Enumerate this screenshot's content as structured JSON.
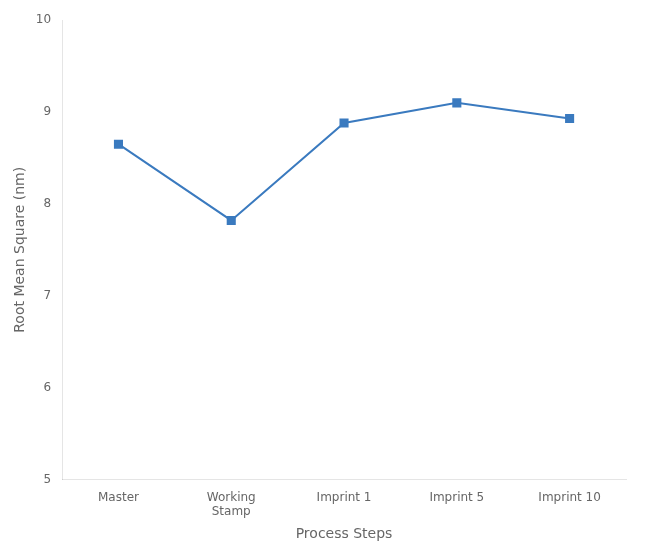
{
  "chart_data": {
    "type": "line",
    "categories": [
      "Master",
      "Working\nStamp",
      "Imprint 1",
      "Imprint 5",
      "Imprint 10"
    ],
    "values": [
      8.65,
      7.82,
      8.88,
      9.1,
      8.93
    ],
    "color": "#3a7abf",
    "marker": "square",
    "xlabel": "Process Steps",
    "ylabel": "Root Mean Square (nm)",
    "ylim": [
      5,
      10
    ],
    "yticks": [
      5,
      6,
      7,
      8,
      9,
      10
    ],
    "grid": false
  }
}
